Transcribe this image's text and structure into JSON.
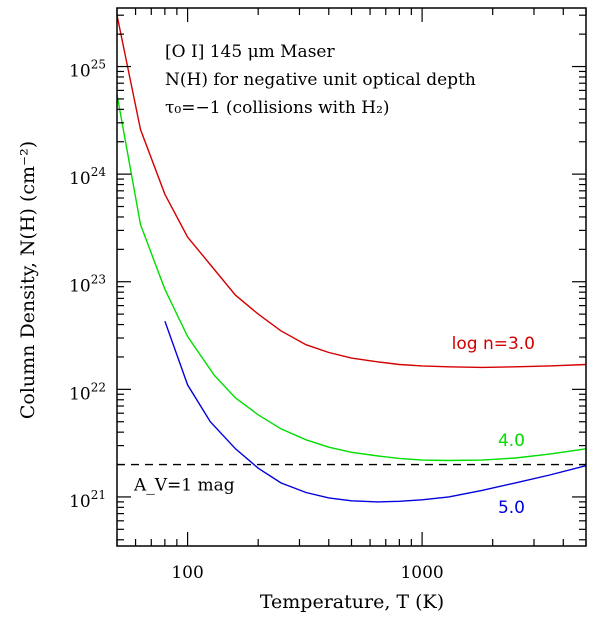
{
  "chart_data": {
    "type": "line",
    "xlabel": "Temperature, T     (K)",
    "ylabel": "Column Density, N(H)  (cm⁻²)",
    "x_scale": "log",
    "y_scale": "log",
    "xlim": [
      50,
      5000
    ],
    "ylim": [
      3.5e+20,
      3.5e+25
    ],
    "x_ticks": [
      {
        "value": 100,
        "label": "100"
      },
      {
        "value": 1000,
        "label": "1000"
      }
    ],
    "y_ticks": [
      {
        "value": 1e+21,
        "label": "10",
        "exp": "21"
      },
      {
        "value": 1e+22,
        "label": "10",
        "exp": "22"
      },
      {
        "value": 1e+23,
        "label": "10",
        "exp": "23"
      },
      {
        "value": 1e+24,
        "label": "10",
        "exp": "24"
      },
      {
        "value": 1e+25,
        "label": "10",
        "exp": "25"
      }
    ],
    "annotations": [
      "[O I] 145 μm Maser",
      "N(H) for negative unit optical depth",
      "τ₀=−1 (collisions with H₂)"
    ],
    "reference_line": {
      "y": 2e+21,
      "label": "A_V=1 mag",
      "style": "dashed",
      "color": "#000000"
    },
    "series": [
      {
        "label": "log n=3.0",
        "color": "#d40000",
        "x": [
          50,
          63,
          80,
          100,
          130,
          160,
          200,
          250,
          320,
          400,
          500,
          650,
          800,
          1000,
          1300,
          1800,
          2500,
          3500,
          5000
        ],
        "y": [
          3e+25,
          2.6e+24,
          6.5e+23,
          2.6e+23,
          1.3e+23,
          7.5e+22,
          5e+22,
          3.5e+22,
          2.6e+22,
          2.2e+22,
          1.95e+22,
          1.8e+22,
          1.7e+22,
          1.65e+22,
          1.62e+22,
          1.6e+22,
          1.62e+22,
          1.65e+22,
          1.7e+22
        ]
      },
      {
        "label": "4.0",
        "color": "#00dd00",
        "x": [
          50,
          63,
          80,
          100,
          130,
          160,
          200,
          250,
          320,
          400,
          500,
          650,
          800,
          1000,
          1300,
          1800,
          2500,
          3500,
          5000
        ],
        "y": [
          5.5e+24,
          3.4e+23,
          8.5e+22,
          3.1e+22,
          1.35e+22,
          8.3e+21,
          5.8e+21,
          4.3e+21,
          3.4e+21,
          2.9e+21,
          2.6e+21,
          2.4e+21,
          2.28e+21,
          2.2e+21,
          2.18e+21,
          2.2e+21,
          2.3e+21,
          2.5e+21,
          2.8e+21
        ]
      },
      {
        "label": "5.0",
        "color": "#0000dd",
        "x": [
          80,
          100,
          125,
          160,
          200,
          250,
          320,
          400,
          500,
          650,
          800,
          1000,
          1300,
          1800,
          2500,
          3500,
          5000
        ],
        "y": [
          4.3e+22,
          1.1e+22,
          5e+21,
          2.8e+21,
          1.85e+21,
          1.35e+21,
          1.1e+21,
          9.8e+20,
          9.2e+20,
          9e+20,
          9.1e+20,
          9.4e+20,
          1e+21,
          1.15e+21,
          1.35e+21,
          1.6e+21,
          1.95e+21
        ]
      }
    ]
  }
}
